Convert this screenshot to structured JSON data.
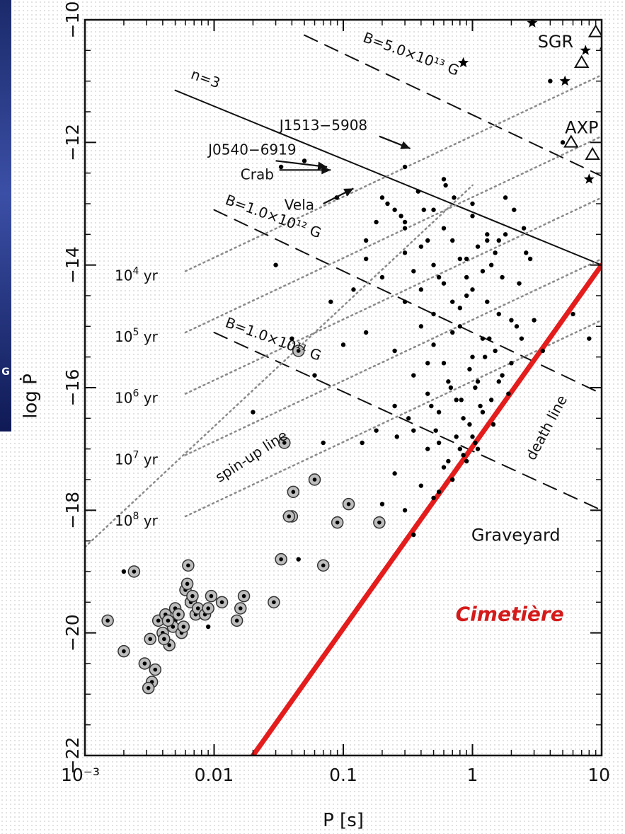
{
  "edge_glyph": "G",
  "chart_data": {
    "type": "scatter",
    "title": "",
    "xlabel": "P   [s]",
    "ylabel": "log Ṗ",
    "xscale": "log",
    "xlim": [
      0.001,
      10
    ],
    "ylim": [
      -22,
      -10
    ],
    "grid": false,
    "x_ticks": [
      {
        "value": 0.001,
        "label": "10⁻³"
      },
      {
        "value": 0.01,
        "label": "0.01"
      },
      {
        "value": 0.1,
        "label": "0.1"
      },
      {
        "value": 1,
        "label": "1"
      },
      {
        "value": 10,
        "label": "10"
      }
    ],
    "y_ticks": [
      {
        "value": -10,
        "label": "−10"
      },
      {
        "value": -12,
        "label": "−12"
      },
      {
        "value": -14,
        "label": "−14"
      },
      {
        "value": -16,
        "label": "−16"
      },
      {
        "value": -18,
        "label": "−18"
      },
      {
        "value": -20,
        "label": "−20"
      },
      {
        "value": -22,
        "label": "−22"
      }
    ],
    "lines": [
      {
        "id": "n3",
        "style": "solid",
        "color": "#111111",
        "x1": 0.005,
        "y1": -11.15,
        "x2": 10,
        "y2": -14.0
      },
      {
        "id": "b13",
        "style": "dashed",
        "color": "#111111",
        "x1": 0.05,
        "y1": -10.25,
        "x2": 10,
        "y2": -12.55
      },
      {
        "id": "b12",
        "style": "dashed",
        "color": "#111111",
        "x1": 0.01,
        "y1": -13.1,
        "x2": 10,
        "y2": -16.1
      },
      {
        "id": "b11",
        "style": "dashed",
        "color": "#111111",
        "x1": 0.01,
        "y1": -15.1,
        "x2": 10,
        "y2": -18.0
      },
      {
        "id": "age4",
        "style": "dotted",
        "color": "#8a8a8a",
        "x1": 0.006,
        "y1": -14.1,
        "x2": 10,
        "y2": -10.9
      },
      {
        "id": "age5",
        "style": "dotted",
        "color": "#8a8a8a",
        "x1": 0.006,
        "y1": -15.1,
        "x2": 10,
        "y2": -11.9
      },
      {
        "id": "age6",
        "style": "dotted",
        "color": "#8a8a8a",
        "x1": 0.006,
        "y1": -16.1,
        "x2": 10,
        "y2": -12.9
      },
      {
        "id": "age7",
        "style": "dotted",
        "color": "#8a8a8a",
        "x1": 0.006,
        "y1": -17.1,
        "x2": 10,
        "y2": -13.9
      },
      {
        "id": "age8",
        "style": "dotted",
        "color": "#8a8a8a",
        "x1": 0.006,
        "y1": -18.1,
        "x2": 10,
        "y2": -14.9
      },
      {
        "id": "spinup",
        "style": "dotted",
        "color": "#8a8a8a",
        "x1": 0.001,
        "y1": -18.6,
        "x2": 1.0,
        "y2": -12.7
      },
      {
        "id": "death",
        "style": "solid",
        "color": "#e41c1c",
        "width": 7,
        "x1": 0.02,
        "y1": -22.0,
        "x2": 10,
        "y2": -14.0
      }
    ],
    "age_labels": [
      {
        "base": "10",
        "exp": "4",
        "unit": "yr",
        "x": 0.0017,
        "y": -14.25
      },
      {
        "base": "10",
        "exp": "5",
        "unit": "yr",
        "x": 0.0017,
        "y": -15.25
      },
      {
        "base": "10",
        "exp": "6",
        "unit": "yr",
        "x": 0.0017,
        "y": -16.25
      },
      {
        "base": "10",
        "exp": "7",
        "unit": "yr",
        "x": 0.0017,
        "y": -17.25
      },
      {
        "base": "10",
        "exp": "8",
        "unit": "yr",
        "x": 0.0017,
        "y": -18.25
      }
    ],
    "annotations": [
      {
        "id": "sgr",
        "text": "SGR",
        "x": 3.2,
        "y": -10.45,
        "cls": "annot-big"
      },
      {
        "id": "axp",
        "text": "AXP",
        "x": 5.2,
        "y": -11.85,
        "cls": "annot-big"
      },
      {
        "id": "j1513",
        "text": "J1513−5908",
        "x": 0.032,
        "y": -11.8,
        "cls": "annot"
      },
      {
        "id": "j0540",
        "text": "J0540−6919",
        "x": 0.009,
        "y": -12.2,
        "cls": "annot"
      },
      {
        "id": "crab",
        "text": "Crab",
        "x": 0.016,
        "y": -12.6,
        "cls": "annot"
      },
      {
        "id": "vela",
        "text": "Vela",
        "x": 0.035,
        "y": -13.1,
        "cls": "annot"
      },
      {
        "id": "graveyard",
        "text": "Graveyard",
        "x": 0.98,
        "y": -18.5,
        "cls": "annot-big"
      },
      {
        "id": "cimetiere",
        "text": "Cimetière",
        "x": 0.74,
        "y": -19.8,
        "cls": "cim"
      }
    ],
    "rotated_labels": [
      {
        "id": "n3-label",
        "text": "n=3",
        "x": 0.0065,
        "y": -10.95,
        "angle": 20
      },
      {
        "id": "b13-label",
        "text": "B=5.0×10¹³ G",
        "x": 0.14,
        "y": -10.35,
        "angle": 20
      },
      {
        "id": "b12-label",
        "text": "B=1.0×10¹² G",
        "x": 0.012,
        "y": -13.0,
        "angle": 20
      },
      {
        "id": "b11-label",
        "text": "B=1.0×10¹¹ G",
        "x": 0.012,
        "y": -15.0,
        "angle": 20
      },
      {
        "id": "spinup-label",
        "text": "spin-up line",
        "x": 0.011,
        "y": -17.55,
        "angle": -33
      },
      {
        "id": "death-label",
        "text": "death line",
        "x": 3.0,
        "y": -17.2,
        "angle": -62
      }
    ],
    "arrows": [
      {
        "id": "arrow-j1513",
        "x1": 0.19,
        "y1": -11.9,
        "x2": 0.33,
        "y2": -12.1
      },
      {
        "id": "arrow-j0540",
        "x1": 0.03,
        "y1": -12.3,
        "x2": 0.075,
        "y2": -12.4
      },
      {
        "id": "arrow-crab",
        "x1": 0.032,
        "y1": -12.45,
        "x2": 0.08,
        "y2": -12.45
      },
      {
        "id": "arrow-vela",
        "x1": 0.07,
        "y1": -13.0,
        "x2": 0.12,
        "y2": -12.75
      }
    ],
    "series": [
      {
        "name": "",
        "marker": "dot",
        "note": "radio pulsars (representative sample)",
        "x": [
          0.033,
          0.05,
          0.089,
          0.15,
          0.25,
          0.3,
          0.35,
          0.4,
          0.45,
          0.5,
          0.55,
          0.6,
          0.7,
          0.8,
          0.9,
          1.0,
          1.2,
          1.4,
          1.6,
          1.8,
          2.0,
          2.3,
          2.6,
          3.0,
          0.2,
          0.3,
          0.4,
          0.5,
          0.6,
          0.7,
          0.8,
          0.9,
          1.0,
          1.1,
          1.3,
          1.5,
          1.7,
          2.0,
          2.4,
          2.8,
          0.25,
          0.35,
          0.45,
          0.55,
          0.65,
          0.75,
          0.85,
          0.95,
          1.05,
          1.15,
          1.25,
          1.35,
          1.45,
          1.6,
          1.9,
          2.2,
          0.3,
          0.4,
          0.5,
          0.6,
          0.7,
          0.8,
          0.9,
          1.0,
          1.1,
          1.2,
          1.3,
          1.5,
          1.7,
          0.35,
          0.45,
          0.55,
          0.65,
          0.75,
          0.85,
          0.95,
          1.05,
          1.2,
          1.4,
          0.25,
          0.4,
          0.6,
          0.8,
          1.0,
          0.3,
          0.5,
          0.7,
          0.9,
          1.1,
          0.2,
          0.35,
          0.55,
          0.25,
          0.45,
          0.15,
          0.12,
          0.1,
          0.08,
          0.06,
          0.04,
          0.03,
          0.02,
          0.07,
          0.18,
          4.0,
          5.0,
          6.0,
          8.0,
          3.5,
          1.0,
          0.5,
          0.3,
          0.2,
          0.3,
          0.016,
          0.002,
          0.005,
          0.009,
          0.045,
          0.14,
          0.6,
          1.8,
          2.5,
          0.28,
          0.22,
          0.38,
          0.62,
          1.6,
          2.1,
          0.15,
          0.18,
          0.42,
          0.72,
          1.3,
          0.32,
          0.52,
          0.82,
          0.26,
          0.48,
          0.68
        ],
        "y": [
          -12.4,
          -12.3,
          -12.9,
          -13.6,
          -13.1,
          -13.8,
          -14.1,
          -14.4,
          -13.6,
          -14.8,
          -14.2,
          -13.4,
          -14.6,
          -15.0,
          -13.9,
          -14.4,
          -15.2,
          -14.0,
          -14.8,
          -13.5,
          -15.6,
          -14.3,
          -13.8,
          -14.9,
          -14.2,
          -14.6,
          -15.0,
          -15.3,
          -15.6,
          -15.1,
          -14.7,
          -14.2,
          -15.5,
          -15.9,
          -14.6,
          -15.4,
          -15.8,
          -14.9,
          -15.2,
          -13.9,
          -15.4,
          -15.8,
          -16.1,
          -16.4,
          -15.9,
          -16.2,
          -16.5,
          -15.7,
          -16.0,
          -16.3,
          -15.5,
          -15.2,
          -16.6,
          -15.9,
          -16.1,
          -15.0,
          -13.4,
          -13.7,
          -14.0,
          -14.3,
          -13.6,
          -13.9,
          -14.5,
          -13.2,
          -13.7,
          -14.1,
          -13.5,
          -13.8,
          -14.2,
          -16.7,
          -17.0,
          -16.9,
          -17.2,
          -16.8,
          -17.1,
          -16.6,
          -16.9,
          -16.4,
          -16.2,
          -17.4,
          -17.6,
          -17.3,
          -17.0,
          -16.8,
          -18.0,
          -17.8,
          -17.5,
          -17.2,
          -17.0,
          -17.9,
          -18.4,
          -17.7,
          -16.3,
          -15.6,
          -15.1,
          -14.4,
          -15.3,
          -14.6,
          -15.8,
          -15.2,
          -14.0,
          -16.4,
          -16.9,
          -16.7,
          -11.0,
          -12.0,
          -14.8,
          -15.2,
          -15.4,
          -13.0,
          -13.1,
          -13.3,
          -12.9,
          -12.4,
          -19.6,
          -19.0,
          -19.8,
          -19.9,
          -18.8,
          -16.9,
          -12.6,
          -12.9,
          -13.4,
          -13.2,
          -13.0,
          -12.8,
          -12.7,
          -13.6,
          -13.1,
          -13.9,
          -13.3,
          -13.1,
          -12.9,
          -13.6,
          -16.5,
          -16.7,
          -16.2,
          -16.8,
          -16.3,
          -16.0
        ]
      },
      {
        "name": "",
        "marker": "circled-dot",
        "note": "binary / millisecond pulsars",
        "x": [
          0.0015,
          0.002,
          0.0024,
          0.0029,
          0.0032,
          0.0035,
          0.0037,
          0.004,
          0.0042,
          0.0045,
          0.0048,
          0.005,
          0.0053,
          0.0056,
          0.006,
          0.0063,
          0.0066,
          0.0072,
          0.0075,
          0.0085,
          0.009,
          0.0095,
          0.0115,
          0.015,
          0.016,
          0.017,
          0.029,
          0.033,
          0.04,
          0.041,
          0.045,
          0.06,
          0.07,
          0.09,
          0.11,
          0.19,
          0.035,
          0.038,
          0.0033,
          0.0031,
          0.0041,
          0.0044,
          0.0058,
          0.0062,
          0.0068
        ],
        "y": [
          -19.8,
          -20.3,
          -19.0,
          -20.5,
          -20.1,
          -20.6,
          -19.8,
          -20.0,
          -19.7,
          -20.2,
          -19.9,
          -19.6,
          -19.7,
          -20.0,
          -19.3,
          -18.9,
          -19.5,
          -19.7,
          -19.6,
          -19.7,
          -19.6,
          -19.4,
          -19.5,
          -19.8,
          -19.6,
          -19.4,
          -19.5,
          -18.8,
          -18.1,
          -17.7,
          -15.4,
          -17.5,
          -18.9,
          -18.2,
          -17.9,
          -18.2,
          -16.9,
          -18.1,
          -20.8,
          -20.9,
          -20.1,
          -19.8,
          -19.9,
          -19.2,
          -19.4
        ]
      },
      {
        "name": "",
        "marker": "star",
        "note": "SGR",
        "x": [
          0.85,
          2.9,
          5.2,
          7.5,
          8.0
        ],
        "y": [
          -10.7,
          -10.05,
          -11.0,
          -10.5,
          -12.6
        ]
      },
      {
        "name": "",
        "marker": "triangle",
        "note": "AXP",
        "x": [
          5.8,
          7.0,
          8.5,
          9.0,
          11.0
        ],
        "y": [
          -12.0,
          -10.7,
          -12.2,
          -10.2,
          -10.4
        ]
      }
    ]
  }
}
